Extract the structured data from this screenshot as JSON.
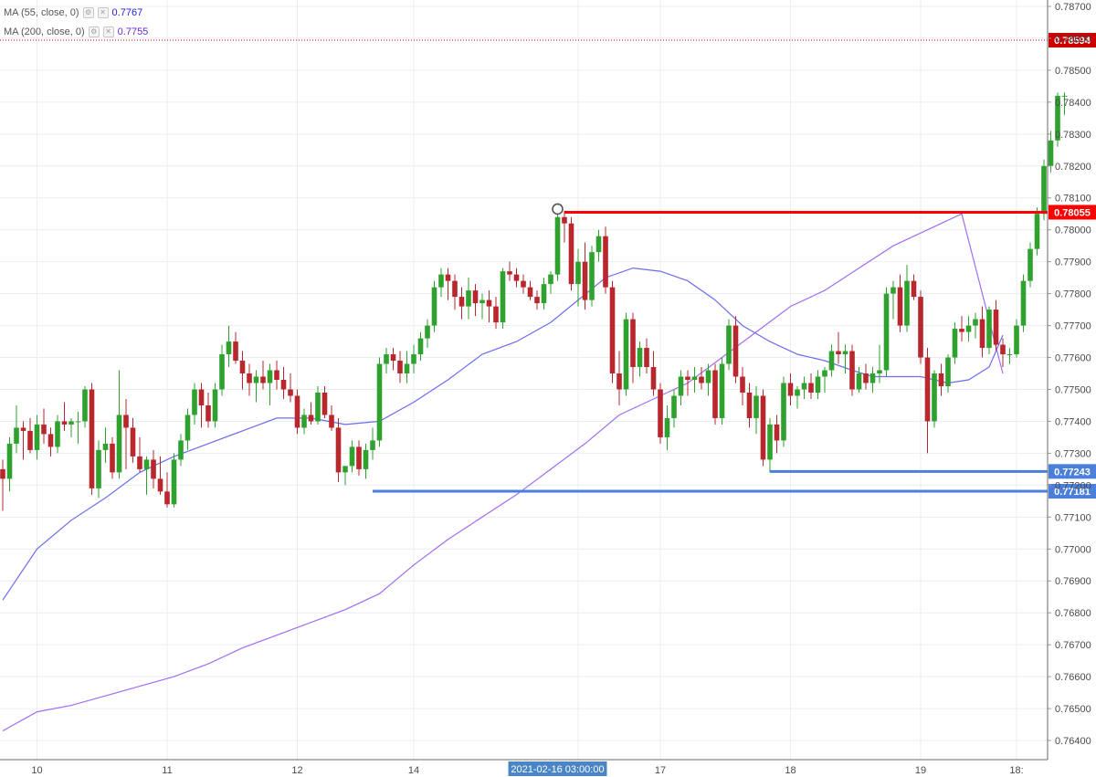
{
  "colors": {
    "up": "#2ea12e",
    "down": "#b8262e",
    "ma55": "#6c6cf0",
    "ma200": "#a26cf4",
    "resistance": "#ff0000",
    "support": "#4a7fdc",
    "grid": "#e9eef2",
    "axis_text": "#4a4a4a",
    "crosshair_label": "#4a86c5",
    "price_label": "#cc0000"
  },
  "legend": [
    {
      "name": "MA (55, close, 0)",
      "value": "0.7767",
      "color": "#1f1fd6",
      "icon_settings": "gear-icon",
      "icon_close": "close-icon"
    },
    {
      "name": "MA (200, close, 0)",
      "value": "0.7755",
      "color": "#6a2ad6",
      "icon_settings": "gear-icon",
      "icon_close": "close-icon"
    }
  ],
  "chart_data": {
    "type": "candlestick",
    "x_axis_labels": [
      {
        "label": "10",
        "index": 5
      },
      {
        "label": "11",
        "index": 24
      },
      {
        "label": "12",
        "index": 43
      },
      {
        "label": "14",
        "index": 60
      },
      {
        "label": "16",
        "index": 84
      },
      {
        "label": "17",
        "index": 96
      },
      {
        "label": "18",
        "index": 115
      },
      {
        "label": "19",
        "index": 134
      },
      {
        "label": "18:",
        "index": 148
      }
    ],
    "crosshair_time_label": "2021-02-16 03:00:00",
    "crosshair_index": 81,
    "y_range": [
      0.7634,
      0.7872
    ],
    "y_ticks": [
      "0.78700",
      "0.78600",
      "0.78500",
      "0.78400",
      "0.78300",
      "0.78200",
      "0.78100",
      "0.78000",
      "0.77900",
      "0.77800",
      "0.77700",
      "0.77600",
      "0.77500",
      "0.77400",
      "0.77300",
      "0.77200",
      "0.77100",
      "0.77000",
      "0.76900",
      "0.76800",
      "0.76700",
      "0.76600",
      "0.76500",
      "0.76400"
    ],
    "price_labels": [
      {
        "text": "0.78594",
        "value": 0.78594,
        "color": "#cc0000",
        "style": "dotted"
      },
      {
        "text": "0.78055",
        "value": 0.78055,
        "color": "#ff0000",
        "style": "solid",
        "from_index": 82
      },
      {
        "text": "0.77243",
        "value": 0.77243,
        "color": "#4a7fdc",
        "style": "solid",
        "from_index": 112
      },
      {
        "text": "0.77181",
        "value": 0.77181,
        "color": "#4a7fdc",
        "style": "solid",
        "from_index": 54
      }
    ],
    "marker": {
      "index": 81,
      "value": 0.7806
    },
    "candles": [
      [
        0.7725,
        0.7728,
        0.7712,
        0.7722
      ],
      [
        0.7722,
        0.7735,
        0.7718,
        0.7733
      ],
      [
        0.7733,
        0.7745,
        0.773,
        0.7738
      ],
      [
        0.7738,
        0.774,
        0.7728,
        0.7737
      ],
      [
        0.7737,
        0.7741,
        0.773,
        0.7731
      ],
      [
        0.7731,
        0.7742,
        0.7728,
        0.7739
      ],
      [
        0.7739,
        0.7744,
        0.7733,
        0.7736
      ],
      [
        0.7736,
        0.7738,
        0.7729,
        0.7732
      ],
      [
        0.7732,
        0.7742,
        0.773,
        0.774
      ],
      [
        0.774,
        0.7746,
        0.7737,
        0.7739
      ],
      [
        0.7739,
        0.7741,
        0.7735,
        0.774
      ],
      [
        0.774,
        0.7743,
        0.7733,
        0.774
      ],
      [
        0.774,
        0.7751,
        0.7738,
        0.775
      ],
      [
        0.775,
        0.7752,
        0.7717,
        0.7719
      ],
      [
        0.7719,
        0.7734,
        0.7716,
        0.7731
      ],
      [
        0.7731,
        0.7738,
        0.7727,
        0.7733
      ],
      [
        0.7733,
        0.7735,
        0.7722,
        0.7724
      ],
      [
        0.7724,
        0.7756,
        0.7722,
        0.7742
      ],
      [
        0.7742,
        0.7747,
        0.7725,
        0.7738
      ],
      [
        0.7738,
        0.7741,
        0.7727,
        0.7729
      ],
      [
        0.7729,
        0.7735,
        0.7724,
        0.7725
      ],
      [
        0.7725,
        0.7729,
        0.7717,
        0.7728
      ],
      [
        0.7728,
        0.7731,
        0.7719,
        0.7722
      ],
      [
        0.7722,
        0.7729,
        0.7717,
        0.7718
      ],
      [
        0.7718,
        0.7724,
        0.7713,
        0.7714
      ],
      [
        0.7714,
        0.773,
        0.7713,
        0.7728
      ],
      [
        0.7728,
        0.7736,
        0.7726,
        0.7734
      ],
      [
        0.7734,
        0.7744,
        0.7731,
        0.7742
      ],
      [
        0.7742,
        0.7752,
        0.7739,
        0.775
      ],
      [
        0.775,
        0.7752,
        0.7738,
        0.7745
      ],
      [
        0.7745,
        0.7749,
        0.7738,
        0.774
      ],
      [
        0.774,
        0.7752,
        0.7738,
        0.775
      ],
      [
        0.775,
        0.7764,
        0.7748,
        0.7761
      ],
      [
        0.7761,
        0.777,
        0.7757,
        0.7765
      ],
      [
        0.7765,
        0.7768,
        0.7758,
        0.7759
      ],
      [
        0.7759,
        0.7762,
        0.775,
        0.7755
      ],
      [
        0.7755,
        0.7758,
        0.7748,
        0.7752
      ],
      [
        0.7752,
        0.7756,
        0.7746,
        0.7754
      ],
      [
        0.7754,
        0.7759,
        0.775,
        0.7752
      ],
      [
        0.7752,
        0.7758,
        0.7745,
        0.7756
      ],
      [
        0.7756,
        0.7759,
        0.775,
        0.7753
      ],
      [
        0.7753,
        0.7757,
        0.7747,
        0.775
      ],
      [
        0.775,
        0.7755,
        0.7746,
        0.7748
      ],
      [
        0.7748,
        0.775,
        0.7736,
        0.7738
      ],
      [
        0.7738,
        0.7744,
        0.7736,
        0.7742
      ],
      [
        0.7742,
        0.7746,
        0.7739,
        0.774
      ],
      [
        0.774,
        0.7751,
        0.7739,
        0.7749
      ],
      [
        0.7749,
        0.7751,
        0.7741,
        0.7742
      ],
      [
        0.7742,
        0.7745,
        0.7737,
        0.7738
      ],
      [
        0.7738,
        0.7741,
        0.7721,
        0.7724
      ],
      [
        0.7724,
        0.7726,
        0.772,
        0.7726
      ],
      [
        0.7726,
        0.7734,
        0.7724,
        0.7732
      ],
      [
        0.7732,
        0.7734,
        0.7723,
        0.7725
      ],
      [
        0.7725,
        0.7733,
        0.7722,
        0.7731
      ],
      [
        0.7731,
        0.7738,
        0.7728,
        0.7734
      ],
      [
        0.7734,
        0.776,
        0.7732,
        0.7758
      ],
      [
        0.7758,
        0.7763,
        0.7755,
        0.7761
      ],
      [
        0.7761,
        0.7763,
        0.7756,
        0.7759
      ],
      [
        0.7759,
        0.7762,
        0.7752,
        0.7755
      ],
      [
        0.7755,
        0.7762,
        0.7752,
        0.7758
      ],
      [
        0.7758,
        0.7764,
        0.7755,
        0.7761
      ],
      [
        0.7761,
        0.7768,
        0.7759,
        0.7766
      ],
      [
        0.7766,
        0.7772,
        0.7763,
        0.777
      ],
      [
        0.777,
        0.7784,
        0.7768,
        0.7782
      ],
      [
        0.7782,
        0.7788,
        0.7779,
        0.7786
      ],
      [
        0.7786,
        0.7788,
        0.7778,
        0.7784
      ],
      [
        0.7784,
        0.7786,
        0.7775,
        0.7779
      ],
      [
        0.7779,
        0.7782,
        0.7772,
        0.7776
      ],
      [
        0.7776,
        0.7785,
        0.7772,
        0.7781
      ],
      [
        0.7781,
        0.7783,
        0.7773,
        0.7777
      ],
      [
        0.7777,
        0.778,
        0.7772,
        0.7778
      ],
      [
        0.7778,
        0.7781,
        0.7771,
        0.7776
      ],
      [
        0.7776,
        0.7779,
        0.7769,
        0.7771
      ],
      [
        0.7771,
        0.7788,
        0.7769,
        0.7787
      ],
      [
        0.7787,
        0.779,
        0.7784,
        0.7786
      ],
      [
        0.7786,
        0.7788,
        0.7782,
        0.7784
      ],
      [
        0.7784,
        0.7786,
        0.778,
        0.7782
      ],
      [
        0.7782,
        0.7784,
        0.7778,
        0.7779
      ],
      [
        0.7779,
        0.7781,
        0.7775,
        0.7777
      ],
      [
        0.7777,
        0.7785,
        0.7775,
        0.7783
      ],
      [
        0.7783,
        0.7787,
        0.778,
        0.7786
      ],
      [
        0.7786,
        0.7806,
        0.7784,
        0.7804
      ],
      [
        0.7804,
        0.7806,
        0.7796,
        0.7802
      ],
      [
        0.7802,
        0.7804,
        0.7781,
        0.7783
      ],
      [
        0.7783,
        0.7794,
        0.7776,
        0.779
      ],
      [
        0.779,
        0.7796,
        0.7775,
        0.7778
      ],
      [
        0.7778,
        0.7795,
        0.7776,
        0.7793
      ],
      [
        0.7793,
        0.78,
        0.779,
        0.7798
      ],
      [
        0.7798,
        0.7801,
        0.778,
        0.7782
      ],
      [
        0.7782,
        0.7784,
        0.7752,
        0.7755
      ],
      [
        0.7755,
        0.7762,
        0.7745,
        0.775
      ],
      [
        0.775,
        0.7774,
        0.7748,
        0.7772
      ],
      [
        0.7772,
        0.7774,
        0.7752,
        0.7757
      ],
      [
        0.7757,
        0.7765,
        0.7754,
        0.7763
      ],
      [
        0.7763,
        0.7766,
        0.7755,
        0.7757
      ],
      [
        0.7757,
        0.7762,
        0.7748,
        0.775
      ],
      [
        0.775,
        0.7752,
        0.7733,
        0.7735
      ],
      [
        0.7735,
        0.7745,
        0.7731,
        0.7741
      ],
      [
        0.7741,
        0.775,
        0.7738,
        0.7748
      ],
      [
        0.7748,
        0.7756,
        0.7745,
        0.7754
      ],
      [
        0.7754,
        0.7756,
        0.7748,
        0.7753
      ],
      [
        0.7753,
        0.7757,
        0.7749,
        0.7754
      ],
      [
        0.7754,
        0.7757,
        0.775,
        0.7752
      ],
      [
        0.7752,
        0.7758,
        0.7748,
        0.7756
      ],
      [
        0.7756,
        0.7758,
        0.7739,
        0.7741
      ],
      [
        0.7741,
        0.776,
        0.7739,
        0.7758
      ],
      [
        0.7758,
        0.7772,
        0.7756,
        0.777
      ],
      [
        0.777,
        0.7773,
        0.7752,
        0.7754
      ],
      [
        0.7754,
        0.7757,
        0.7745,
        0.7749
      ],
      [
        0.7749,
        0.7752,
        0.7738,
        0.7741
      ],
      [
        0.7741,
        0.7751,
        0.7736,
        0.7748
      ],
      [
        0.7748,
        0.775,
        0.7726,
        0.7728
      ],
      [
        0.7728,
        0.7741,
        0.7724,
        0.7739
      ],
      [
        0.7739,
        0.7742,
        0.773,
        0.7734
      ],
      [
        0.7734,
        0.7754,
        0.7732,
        0.7752
      ],
      [
        0.7752,
        0.7755,
        0.7745,
        0.7748
      ],
      [
        0.7748,
        0.7751,
        0.7744,
        0.775
      ],
      [
        0.775,
        0.7754,
        0.7747,
        0.7752
      ],
      [
        0.7752,
        0.7755,
        0.7747,
        0.7749
      ],
      [
        0.7749,
        0.7756,
        0.7747,
        0.7754
      ],
      [
        0.7754,
        0.7757,
        0.7749,
        0.7756
      ],
      [
        0.7756,
        0.7764,
        0.7754,
        0.7762
      ],
      [
        0.7762,
        0.7768,
        0.7758,
        0.7761
      ],
      [
        0.7761,
        0.7764,
        0.7755,
        0.7762
      ],
      [
        0.7762,
        0.7764,
        0.7748,
        0.775
      ],
      [
        0.775,
        0.7757,
        0.7749,
        0.7755
      ],
      [
        0.7755,
        0.7758,
        0.775,
        0.7752
      ],
      [
        0.7752,
        0.7757,
        0.7749,
        0.7755
      ],
      [
        0.7755,
        0.7764,
        0.7752,
        0.7756
      ],
      [
        0.7756,
        0.7782,
        0.7754,
        0.778
      ],
      [
        0.778,
        0.7784,
        0.7772,
        0.7782
      ],
      [
        0.7782,
        0.7786,
        0.7768,
        0.777
      ],
      [
        0.777,
        0.7789,
        0.7768,
        0.7784
      ],
      [
        0.7784,
        0.7786,
        0.7778,
        0.7779
      ],
      [
        0.7779,
        0.7781,
        0.7758,
        0.776
      ],
      [
        0.776,
        0.7763,
        0.773,
        0.774
      ],
      [
        0.774,
        0.7756,
        0.7738,
        0.7755
      ],
      [
        0.7755,
        0.7758,
        0.7748,
        0.7751
      ],
      [
        0.7751,
        0.7761,
        0.7749,
        0.776
      ],
      [
        0.776,
        0.7771,
        0.7758,
        0.7769
      ],
      [
        0.7769,
        0.7773,
        0.7765,
        0.7768
      ],
      [
        0.7768,
        0.7773,
        0.7765,
        0.777
      ],
      [
        0.777,
        0.7774,
        0.7766,
        0.7772
      ],
      [
        0.7772,
        0.7776,
        0.776,
        0.7763
      ],
      [
        0.7763,
        0.7776,
        0.7761,
        0.7775
      ],
      [
        0.7775,
        0.7778,
        0.7762,
        0.7764
      ],
      [
        0.7764,
        0.7766,
        0.7757,
        0.7761
      ],
      [
        0.7761,
        0.7763,
        0.7758,
        0.7761
      ],
      [
        0.7761,
        0.7772,
        0.776,
        0.777
      ],
      [
        0.777,
        0.7786,
        0.7768,
        0.7784
      ],
      [
        0.7784,
        0.7796,
        0.7782,
        0.7794
      ],
      [
        0.7794,
        0.7807,
        0.7792,
        0.7805
      ],
      [
        0.7805,
        0.7822,
        0.7803,
        0.782
      ],
      [
        0.782,
        0.7831,
        0.7818,
        0.7828
      ],
      [
        0.7828,
        0.7843,
        0.7826,
        0.7842
      ],
      [
        0.7842,
        0.7843,
        0.7836,
        0.7842
      ]
    ],
    "ma55": [
      [
        0,
        0.7684
      ],
      [
        5,
        0.77
      ],
      [
        10,
        0.7709
      ],
      [
        15,
        0.7716
      ],
      [
        20,
        0.7724
      ],
      [
        25,
        0.7729
      ],
      [
        30,
        0.7733
      ],
      [
        35,
        0.7737
      ],
      [
        40,
        0.7741
      ],
      [
        45,
        0.7741
      ],
      [
        50,
        0.7739
      ],
      [
        55,
        0.774
      ],
      [
        60,
        0.7746
      ],
      [
        65,
        0.7753
      ],
      [
        70,
        0.7761
      ],
      [
        75,
        0.7765
      ],
      [
        80,
        0.7771
      ],
      [
        84,
        0.7778
      ],
      [
        88,
        0.7785
      ],
      [
        92,
        0.7788
      ],
      [
        96,
        0.7787
      ],
      [
        100,
        0.7784
      ],
      [
        104,
        0.7778
      ],
      [
        108,
        0.777
      ],
      [
        112,
        0.7765
      ],
      [
        116,
        0.7761
      ],
      [
        120,
        0.7759
      ],
      [
        124,
        0.7756
      ],
      [
        127,
        0.7754
      ],
      [
        130,
        0.7754
      ],
      [
        134,
        0.7754
      ],
      [
        138,
        0.7752
      ],
      [
        141,
        0.7753
      ],
      [
        144,
        0.7757
      ],
      [
        146,
        0.7767
      ]
    ],
    "ma200": [
      [
        0,
        0.7643
      ],
      [
        5,
        0.7649
      ],
      [
        10,
        0.7651
      ],
      [
        15,
        0.7654
      ],
      [
        20,
        0.7657
      ],
      [
        25,
        0.766
      ],
      [
        30,
        0.7664
      ],
      [
        35,
        0.7669
      ],
      [
        40,
        0.7673
      ],
      [
        45,
        0.7677
      ],
      [
        50,
        0.7681
      ],
      [
        55,
        0.7686
      ],
      [
        60,
        0.7695
      ],
      [
        65,
        0.7703
      ],
      [
        70,
        0.771
      ],
      [
        75,
        0.7717
      ],
      [
        80,
        0.7725
      ],
      [
        85,
        0.7733
      ],
      [
        90,
        0.7742
      ],
      [
        95,
        0.7747
      ],
      [
        100,
        0.7752
      ],
      [
        105,
        0.776
      ],
      [
        110,
        0.7768
      ],
      [
        115,
        0.7776
      ],
      [
        120,
        0.7781
      ],
      [
        125,
        0.7788
      ],
      [
        130,
        0.7795
      ],
      [
        135,
        0.78
      ],
      [
        140,
        0.7805
      ],
      [
        146,
        0.7755
      ]
    ]
  }
}
